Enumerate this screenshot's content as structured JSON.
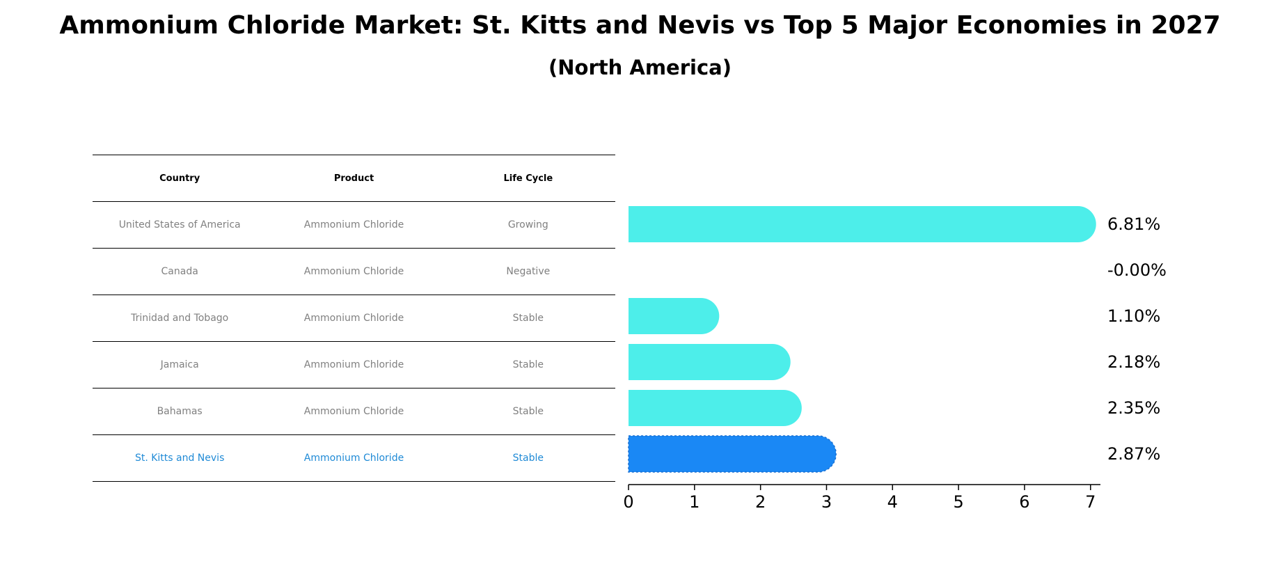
{
  "title": "Ammonium Chloride Market: St. Kitts and Nevis vs Top 5 Major Economies in 2027",
  "subtitle": "(North America)",
  "table": {
    "headers": [
      "Country",
      "Product",
      "Life Cycle"
    ],
    "rows": [
      {
        "country": "United States of America",
        "product": "Ammonium Chloride",
        "life_cycle": "Growing"
      },
      {
        "country": "Canada",
        "product": "Ammonium Chloride",
        "life_cycle": "Negative"
      },
      {
        "country": "Trinidad and Tobago",
        "product": "Ammonium Chloride",
        "life_cycle": "Stable"
      },
      {
        "country": "Jamaica",
        "product": "Ammonium Chloride",
        "life_cycle": "Stable"
      },
      {
        "country": "Bahamas",
        "product": "Ammonium Chloride",
        "life_cycle": "Stable"
      },
      {
        "country": "St. Kitts and Nevis",
        "product": "Ammonium Chloride",
        "life_cycle": "Stable"
      }
    ]
  },
  "chart_data": {
    "type": "bar",
    "orientation": "horizontal",
    "categories": [
      "United States of America",
      "Canada",
      "Trinidad and Tobago",
      "Jamaica",
      "Bahamas",
      "St. Kitts and Nevis"
    ],
    "values": [
      6.81,
      -0.0,
      1.1,
      2.18,
      2.35,
      2.87
    ],
    "labels": [
      "6.81%",
      "-0.00%",
      "1.10%",
      "2.18%",
      "2.35%",
      "2.87%"
    ],
    "highlight_index": 5,
    "xlim": [
      0,
      7.15
    ],
    "xticks": [
      "0",
      "1",
      "2",
      "3",
      "4",
      "5",
      "6",
      "7"
    ],
    "title": "",
    "xlabel": "",
    "ylabel": ""
  },
  "colors": {
    "bar": "#4deeea",
    "highlight_bar": "#1a88f5",
    "highlight_text": "#1f8ad6",
    "muted_text": "#808080"
  }
}
